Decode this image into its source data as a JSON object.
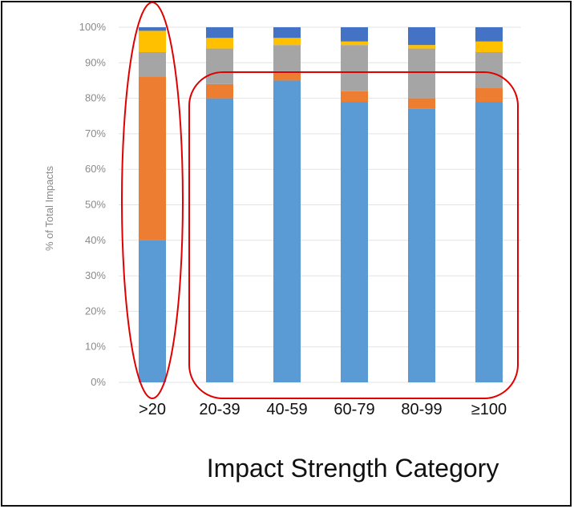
{
  "chart_data": {
    "type": "bar",
    "stacked": true,
    "title": "",
    "xlabel": "Impact Strength Category",
    "ylabel": "% of Total Impacts",
    "categories": [
      ">20",
      "20-39",
      "40-59",
      "60-79",
      "80-99",
      "≥100"
    ],
    "y_ticks": [
      "0%",
      "10%",
      "20%",
      "30%",
      "40%",
      "50%",
      "60%",
      "70%",
      "80%",
      "90%",
      "100%"
    ],
    "ylim": [
      0,
      100
    ],
    "grid": true,
    "legend": "none",
    "series": [
      {
        "color": "#5b9bd5",
        "values": [
          40,
          80,
          85,
          79,
          77,
          79
        ]
      },
      {
        "color": "#ed7d31",
        "values": [
          46,
          4,
          2,
          3,
          3,
          4
        ]
      },
      {
        "color": "#a5a5a5",
        "values": [
          7,
          10,
          8,
          13,
          14,
          10
        ]
      },
      {
        "color": "#ffc000",
        "values": [
          6,
          3,
          2,
          1,
          1,
          3
        ]
      },
      {
        "color": "#4472c4",
        "values": [
          1,
          3,
          3,
          4,
          5,
          4
        ]
      }
    ],
    "highlights": [
      {
        "shape": "ellipse",
        "color": "#e00000",
        "categories": [
          ">20"
        ]
      },
      {
        "shape": "rounded-rect",
        "color": "#e00000",
        "categories": [
          "20-39",
          "40-59",
          "60-79",
          "80-99",
          "≥100"
        ]
      }
    ]
  }
}
